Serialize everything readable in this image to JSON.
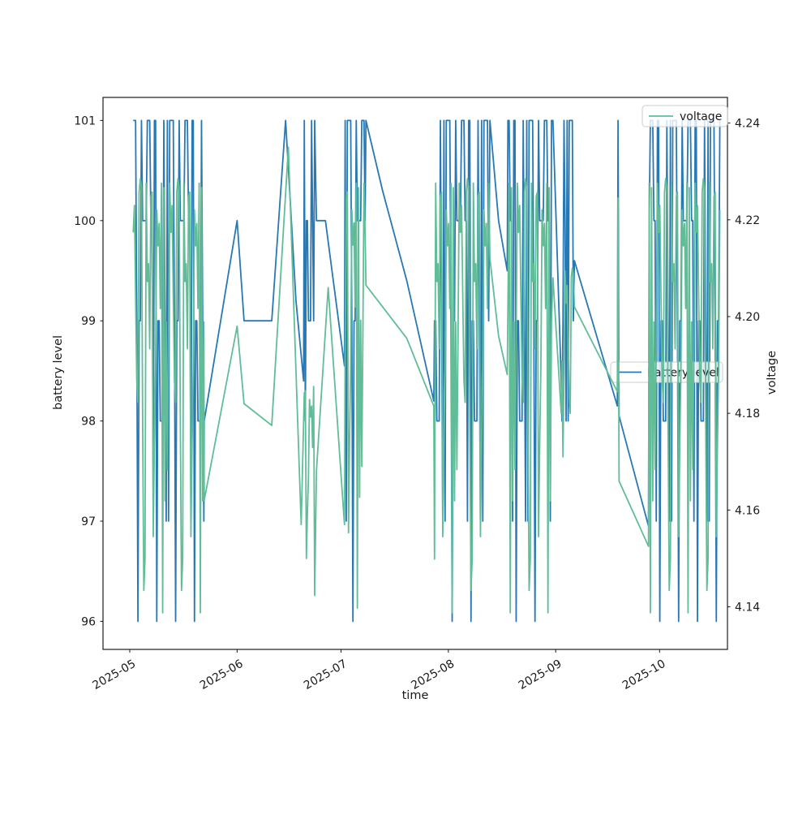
{
  "figure": {
    "background": "#ffffff"
  },
  "colors": {
    "battery_line": "#2878b4",
    "voltage_line": "#60bd97",
    "axis": "#1a1a1a",
    "legend_border": "#cccccc",
    "legend_bg": "#ffffff"
  },
  "legend_voltage": {
    "label": "voltage"
  },
  "legend_battery": {
    "label": "battery level"
  },
  "chart_data": {
    "type": "line",
    "title": "",
    "xlabel": "time",
    "ylabel_left": "battery level",
    "ylabel_right": "voltage",
    "x_tick_labels": [
      "2025-05",
      "2025-06",
      "2025-07",
      "2025-08",
      "2025-09",
      "2025-10"
    ],
    "x_tick_days": [
      0,
      31,
      61,
      92,
      123,
      153
    ],
    "left_ticks": [
      "96",
      "97",
      "98",
      "99",
      "100",
      "101"
    ],
    "right_ticks": [
      "4.14",
      "4.16",
      "4.18",
      "4.20",
      "4.22",
      "4.24"
    ],
    "legend_entries": [
      "voltage",
      "battery level"
    ],
    "legend_positions": [
      "upper right",
      "center right"
    ],
    "grid": false,
    "axes": {
      "x0_day": -7.73,
      "x1_day": 172.6,
      "x_epoch": "2025-05-01",
      "left_min": 95.72,
      "left_max": 101.23,
      "right_min": 4.1312,
      "right_max": 4.2453
    },
    "noise": [
      0.97,
      0.45,
      0.99,
      0.62,
      0.2,
      0.93,
      0.71,
      0.98,
      0.35,
      0.88,
      0.55,
      1.0,
      0.08,
      0.77,
      0.96,
      0.41,
      0.85,
      0.99,
      0.28,
      0.65,
      0.94,
      0.5,
      0.98,
      0.15,
      0.81,
      0.97,
      0.58,
      0.9,
      0.03,
      0.68,
      0.99,
      0.74
    ],
    "series": [
      {
        "name": "battery level",
        "axis": "left",
        "color": "#2878b4",
        "stride": 7,
        "round": true,
        "segments": [
          {
            "burst": {
              "d0": 1.0,
              "d1": 21.5,
              "step": 0.34,
              "min": 96,
              "max": 101,
              "phase": 0
            }
          },
          {
            "points": [
              [
                21.5,
                98
              ],
              [
                31,
                100
              ],
              [
                33,
                99
              ],
              [
                41,
                99
              ],
              [
                45,
                101
              ],
              [
                48,
                99.2
              ],
              [
                50.2,
                98.4
              ]
            ]
          },
          {
            "burst": {
              "d0": 50.4,
              "d1": 53.6,
              "step": 0.3,
              "min": 98.2,
              "max": 101,
              "phase": 5
            }
          },
          {
            "points": [
              [
                53.9,
                100
              ],
              [
                56.5,
                100
              ],
              [
                62,
                98.55
              ]
            ]
          },
          {
            "burst": {
              "d0": 62.2,
              "d1": 68.0,
              "step": 0.32,
              "min": 96.1,
              "max": 101,
              "phase": 11
            }
          },
          {
            "points": [
              [
                68.2,
                101
              ],
              [
                73,
                100.3
              ],
              [
                80,
                99.4
              ],
              [
                87.8,
                98.2
              ]
            ]
          },
          {
            "burst": {
              "d0": 88.0,
              "d1": 103.8,
              "step": 0.34,
              "min": 96,
              "max": 101,
              "phase": 19
            }
          },
          {
            "points": [
              [
                104,
                101
              ],
              [
                106.5,
                100
              ],
              [
                109,
                99.5
              ]
            ]
          },
          {
            "burst": {
              "d0": 109.2,
              "d1": 122.0,
              "step": 0.34,
              "min": 96,
              "max": 101,
              "phase": 27
            }
          },
          {
            "points": [
              [
                122.2,
                101
              ],
              [
                124.6,
                98.4
              ]
            ]
          },
          {
            "burst": {
              "d0": 124.8,
              "d1": 128.2,
              "step": 0.3,
              "min": 97,
              "max": 101,
              "phase": 8
            }
          },
          {
            "points": [
              [
                128.4,
                99.6
              ],
              [
                140.8,
                98.15
              ],
              [
                141,
                101
              ],
              [
                141.3,
                98.05
              ],
              [
                149.8,
                96.95
              ]
            ]
          },
          {
            "burst": {
              "d0": 150.0,
              "d1": 170.6,
              "step": 0.34,
              "min": 96,
              "max": 101,
              "phase": 13
            }
          }
        ]
      },
      {
        "name": "voltage",
        "axis": "right",
        "color": "#60bd97",
        "stride": 11,
        "round": false,
        "segments": [
          {
            "burst": {
              "d0": 1.0,
              "d1": 21.5,
              "step": 0.34,
              "min": 4.136,
              "max": 4.2285,
              "phase": 9
            }
          },
          {
            "points": [
              [
                21.5,
                4.162
              ],
              [
                31,
                4.198
              ],
              [
                33,
                4.182
              ],
              [
                41,
                4.1775
              ],
              [
                45.8,
                4.235
              ],
              [
                49.5,
                4.157
              ]
            ]
          },
          {
            "burst": {
              "d0": 50.4,
              "d1": 53.6,
              "step": 0.3,
              "min": 4.141,
              "max": 4.186,
              "phase": 14
            }
          },
          {
            "points": [
              [
                53.9,
                4.168
              ],
              [
                57.3,
                4.206
              ],
              [
                62,
                4.157
              ]
            ]
          },
          {
            "burst": {
              "d0": 62.2,
              "d1": 68.0,
              "step": 0.32,
              "min": 4.137,
              "max": 4.2285,
              "phase": 3
            }
          },
          {
            "points": [
              [
                68.2,
                4.2065
              ],
              [
                80,
                4.1955
              ],
              [
                87.8,
                4.1815
              ]
            ]
          },
          {
            "burst": {
              "d0": 88.0,
              "d1": 103.8,
              "step": 0.34,
              "min": 4.136,
              "max": 4.2285,
              "phase": 23
            }
          },
          {
            "points": [
              [
                104,
                4.212
              ],
              [
                106.5,
                4.196
              ],
              [
                109,
                4.188
              ]
            ]
          },
          {
            "burst": {
              "d0": 109.2,
              "d1": 122.0,
              "step": 0.34,
              "min": 4.136,
              "max": 4.2285,
              "phase": 6
            }
          },
          {
            "points": [
              [
                122.2,
                4.208
              ],
              [
                124.6,
                4.18
              ]
            ]
          },
          {
            "burst": {
              "d0": 124.8,
              "d1": 128.2,
              "step": 0.3,
              "min": 4.15,
              "max": 4.21,
              "phase": 29
            }
          },
          {
            "points": [
              [
                128.4,
                4.202
              ],
              [
                140.8,
                4.1845
              ],
              [
                141,
                4.2245
              ],
              [
                141.3,
                4.166
              ],
              [
                149.8,
                4.1525
              ]
            ]
          },
          {
            "burst": {
              "d0": 150.0,
              "d1": 170.6,
              "step": 0.34,
              "min": 4.136,
              "max": 4.2285,
              "phase": 17
            }
          }
        ]
      }
    ]
  }
}
